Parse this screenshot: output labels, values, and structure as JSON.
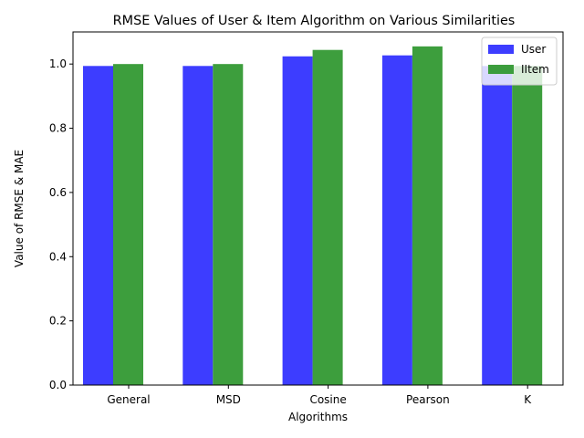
{
  "chart_data": {
    "type": "bar",
    "title": "RMSE Values of User & Item Algorithm on Various Similarities",
    "xlabel": "Algorithms",
    "ylabel": "Value of RMSE & MAE",
    "categories": [
      "General",
      "MSD",
      "Cosine",
      "Pearson",
      "K"
    ],
    "ylim": [
      0,
      1.1
    ],
    "yticks": [
      "0.0",
      "0.2",
      "0.4",
      "0.6",
      "0.8",
      "1.0"
    ],
    "ytick_values": [
      0,
      0.2,
      0.4,
      0.6,
      0.8,
      1.0
    ],
    "grid": false,
    "legend_position": "top-right",
    "series": [
      {
        "name": "User",
        "color": "#3333ff",
        "values": [
          0.994,
          0.994,
          1.024,
          1.027,
          0.994
        ]
      },
      {
        "name": "IItem",
        "color": "#339933",
        "values": [
          1.0,
          1.0,
          1.044,
          1.055,
          0.994
        ]
      }
    ]
  }
}
